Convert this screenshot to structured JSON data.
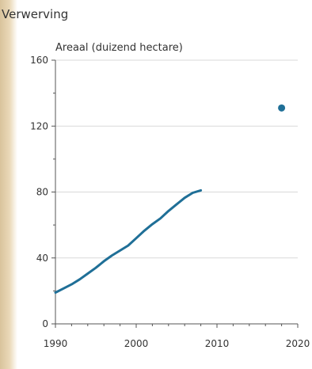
{
  "chart_data": {
    "type": "line",
    "title": "Verwerving",
    "xlabel": "",
    "ylabel": "Areaal (duizend hectare)",
    "xlim": [
      1990,
      2020
    ],
    "ylim": [
      0,
      160
    ],
    "xticks": [
      1990,
      2000,
      2010,
      2020
    ],
    "yticks": [
      0,
      40,
      80,
      120,
      160
    ],
    "grid": true,
    "colors": {
      "series": "#1f6f97",
      "grid": "#d9d9d9",
      "axis": "#555555"
    },
    "series": [
      {
        "type": "line",
        "x": [
          1990,
          1991,
          1992,
          1993,
          1994,
          1995,
          1996,
          1997,
          1998,
          1999,
          2000,
          2001,
          2002,
          2003,
          2004,
          2005,
          2006,
          2007,
          2008
        ],
        "y": [
          19,
          21.5,
          24,
          27,
          30.5,
          34,
          38,
          41.5,
          44.5,
          47.5,
          52,
          56.5,
          60.5,
          64,
          68.5,
          72.5,
          76.5,
          79.5,
          81
        ]
      },
      {
        "type": "scatter",
        "x": [
          2018
        ],
        "y": [
          131
        ]
      }
    ]
  }
}
